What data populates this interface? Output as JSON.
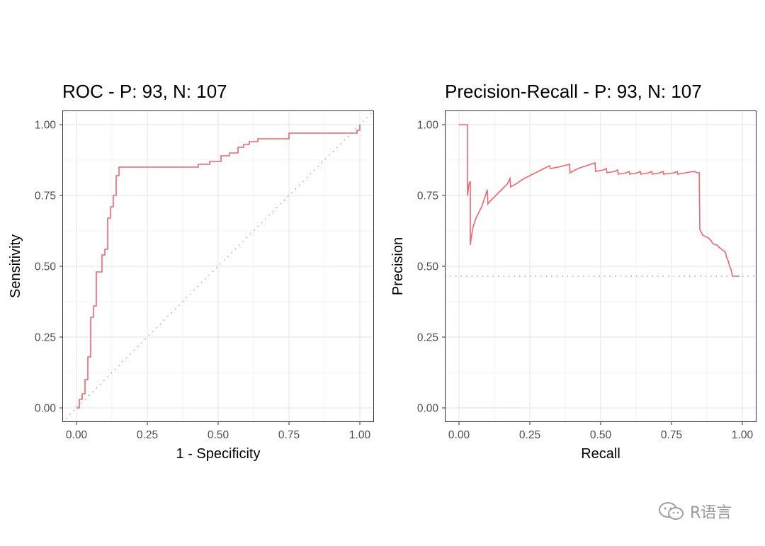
{
  "chart_data": [
    {
      "type": "line",
      "title": "ROC - P: 93, N: 107",
      "xlabel": "1 - Specificity",
      "ylabel": "Sensitivity",
      "xlim": [
        0,
        1
      ],
      "ylim": [
        0,
        1
      ],
      "xticks": [
        "0.00",
        "0.25",
        "0.50",
        "0.75",
        "1.00"
      ],
      "yticks": [
        "0.00",
        "0.25",
        "0.50",
        "0.75",
        "1.00"
      ],
      "grid": true,
      "series": [
        {
          "color": "#f0646e",
          "style": "step",
          "x": [
            0.0,
            0.01,
            0.01,
            0.02,
            0.02,
            0.03,
            0.03,
            0.04,
            0.04,
            0.05,
            0.05,
            0.06,
            0.06,
            0.07,
            0.07,
            0.08,
            0.08,
            0.09,
            0.09,
            0.1,
            0.1,
            0.11,
            0.11,
            0.12,
            0.12,
            0.13,
            0.13,
            0.14,
            0.14,
            0.15,
            0.15,
            0.43,
            0.43,
            0.47,
            0.47,
            0.51,
            0.51,
            0.54,
            0.54,
            0.57,
            0.57,
            0.59,
            0.59,
            0.61,
            0.61,
            0.64,
            0.64,
            0.75,
            0.75,
            0.99,
            0.99,
            1.0,
            1.0
          ],
          "y": [
            0.0,
            0.0,
            0.03,
            0.03,
            0.05,
            0.05,
            0.1,
            0.1,
            0.18,
            0.18,
            0.32,
            0.32,
            0.36,
            0.36,
            0.48,
            0.48,
            0.48,
            0.48,
            0.54,
            0.54,
            0.56,
            0.56,
            0.67,
            0.67,
            0.71,
            0.71,
            0.75,
            0.75,
            0.82,
            0.82,
            0.85,
            0.85,
            0.86,
            0.86,
            0.87,
            0.87,
            0.89,
            0.89,
            0.9,
            0.9,
            0.92,
            0.92,
            0.93,
            0.93,
            0.94,
            0.94,
            0.95,
            0.95,
            0.97,
            0.97,
            0.98,
            0.98,
            1.0
          ]
        },
        {
          "name": "",
          "color": "#999999",
          "style": "dotted",
          "x": [
            -0.05,
            1.05
          ],
          "y": [
            -0.05,
            1.05
          ]
        }
      ]
    },
    {
      "type": "line",
      "title": "Precision-Recall - P: 93, N: 107",
      "xlabel": "Recall",
      "ylabel": "Precision",
      "xlim": [
        0,
        1
      ],
      "ylim": [
        0,
        1
      ],
      "xticks": [
        "0.00",
        "0.25",
        "0.50",
        "0.75",
        "1.00"
      ],
      "yticks": [
        "0.00",
        "0.25",
        "0.50",
        "0.75",
        "1.00"
      ],
      "grid": true,
      "series": [
        {
          "color": "#f0646e",
          "style": "line",
          "x": [
            0.0,
            0.03,
            0.03,
            0.035,
            0.04,
            0.04,
            0.043,
            0.05,
            0.06,
            0.08,
            0.1,
            0.102,
            0.11,
            0.14,
            0.17,
            0.18,
            0.182,
            0.2,
            0.23,
            0.26,
            0.29,
            0.32,
            0.322,
            0.35,
            0.37,
            0.39,
            0.392,
            0.42,
            0.45,
            0.48,
            0.482,
            0.51,
            0.52,
            0.522,
            0.55,
            0.56,
            0.562,
            0.59,
            0.6,
            0.602,
            0.63,
            0.64,
            0.642,
            0.67,
            0.68,
            0.682,
            0.71,
            0.72,
            0.722,
            0.76,
            0.77,
            0.772,
            0.8,
            0.83,
            0.84,
            0.848,
            0.85,
            0.86,
            0.88,
            0.89,
            0.895,
            0.91,
            0.92,
            0.94,
            0.945,
            0.95,
            0.955,
            0.96,
            0.965,
            0.97,
            0.99
          ],
          "y": [
            1.0,
            1.0,
            0.75,
            0.79,
            0.8,
            0.575,
            0.6,
            0.64,
            0.67,
            0.71,
            0.77,
            0.72,
            0.73,
            0.76,
            0.79,
            0.81,
            0.78,
            0.79,
            0.81,
            0.825,
            0.84,
            0.855,
            0.845,
            0.85,
            0.855,
            0.86,
            0.83,
            0.845,
            0.855,
            0.865,
            0.835,
            0.84,
            0.845,
            0.83,
            0.835,
            0.84,
            0.825,
            0.83,
            0.835,
            0.825,
            0.83,
            0.835,
            0.825,
            0.83,
            0.835,
            0.825,
            0.83,
            0.835,
            0.825,
            0.83,
            0.835,
            0.825,
            0.83,
            0.835,
            0.83,
            0.83,
            0.63,
            0.61,
            0.6,
            0.59,
            0.58,
            0.575,
            0.565,
            0.55,
            0.53,
            0.52,
            0.5,
            0.49,
            0.465,
            0.465,
            0.465
          ]
        },
        {
          "name": "",
          "color": "#999999",
          "style": "dotted",
          "x": [
            -0.05,
            1.05
          ],
          "y": [
            0.465,
            0.465
          ]
        },
        {
          "name": "",
          "color": "#e6e6e6",
          "style": "line",
          "x": [
            0.0,
            0.22
          ],
          "y": [
            0.0,
            0.0
          ]
        }
      ]
    }
  ],
  "watermark": {
    "text": "R语言",
    "icon": "wechat-icon"
  }
}
